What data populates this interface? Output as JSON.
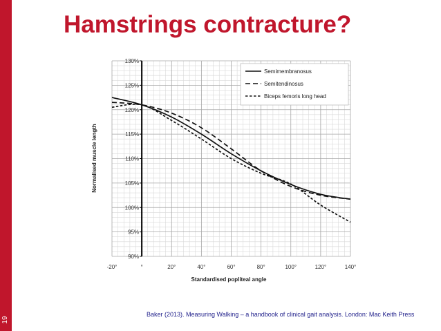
{
  "slide": {
    "title": "Hamstrings contracture?",
    "number": "19",
    "citation": "Baker (2013). Measuring Walking – a handbook of clinical gait analysis. London: Mac Keith Press",
    "accent_color": "#c0162c"
  },
  "chart_data": {
    "type": "line",
    "title": "",
    "xlabel": "Standardised popliteal angle",
    "ylabel": "Normalised muscle length",
    "xlim": [
      -20,
      140
    ],
    "ylim": [
      90,
      130
    ],
    "x_tick_labels": [
      "-20°",
      "°",
      "20°",
      "40°",
      "60°",
      "80°",
      "100°",
      "120°",
      "140°"
    ],
    "y_tick_labels": [
      "90%",
      "95%",
      "100%",
      "105%",
      "110%",
      "115%",
      "120%",
      "125%",
      "130%"
    ],
    "grid": true,
    "legend_position": "top-right",
    "x": [
      -20,
      0,
      20,
      40,
      60,
      80,
      100,
      120,
      140
    ],
    "series": [
      {
        "name": "Semimembranosus",
        "style": "solid",
        "values": [
          122.5,
          121.0,
          118.5,
          115.0,
          111.0,
          107.5,
          104.7,
          102.7,
          101.7
        ]
      },
      {
        "name": "Semitendinosus",
        "style": "dash",
        "values": [
          121.5,
          121.0,
          119.3,
          116.3,
          112.0,
          107.5,
          104.3,
          102.5,
          101.7
        ]
      },
      {
        "name": "Biceps femoris long head",
        "style": "shortdash",
        "values": [
          120.5,
          121.0,
          117.8,
          114.0,
          110.0,
          107.0,
          104.8,
          100.5,
          97.0
        ]
      }
    ]
  }
}
